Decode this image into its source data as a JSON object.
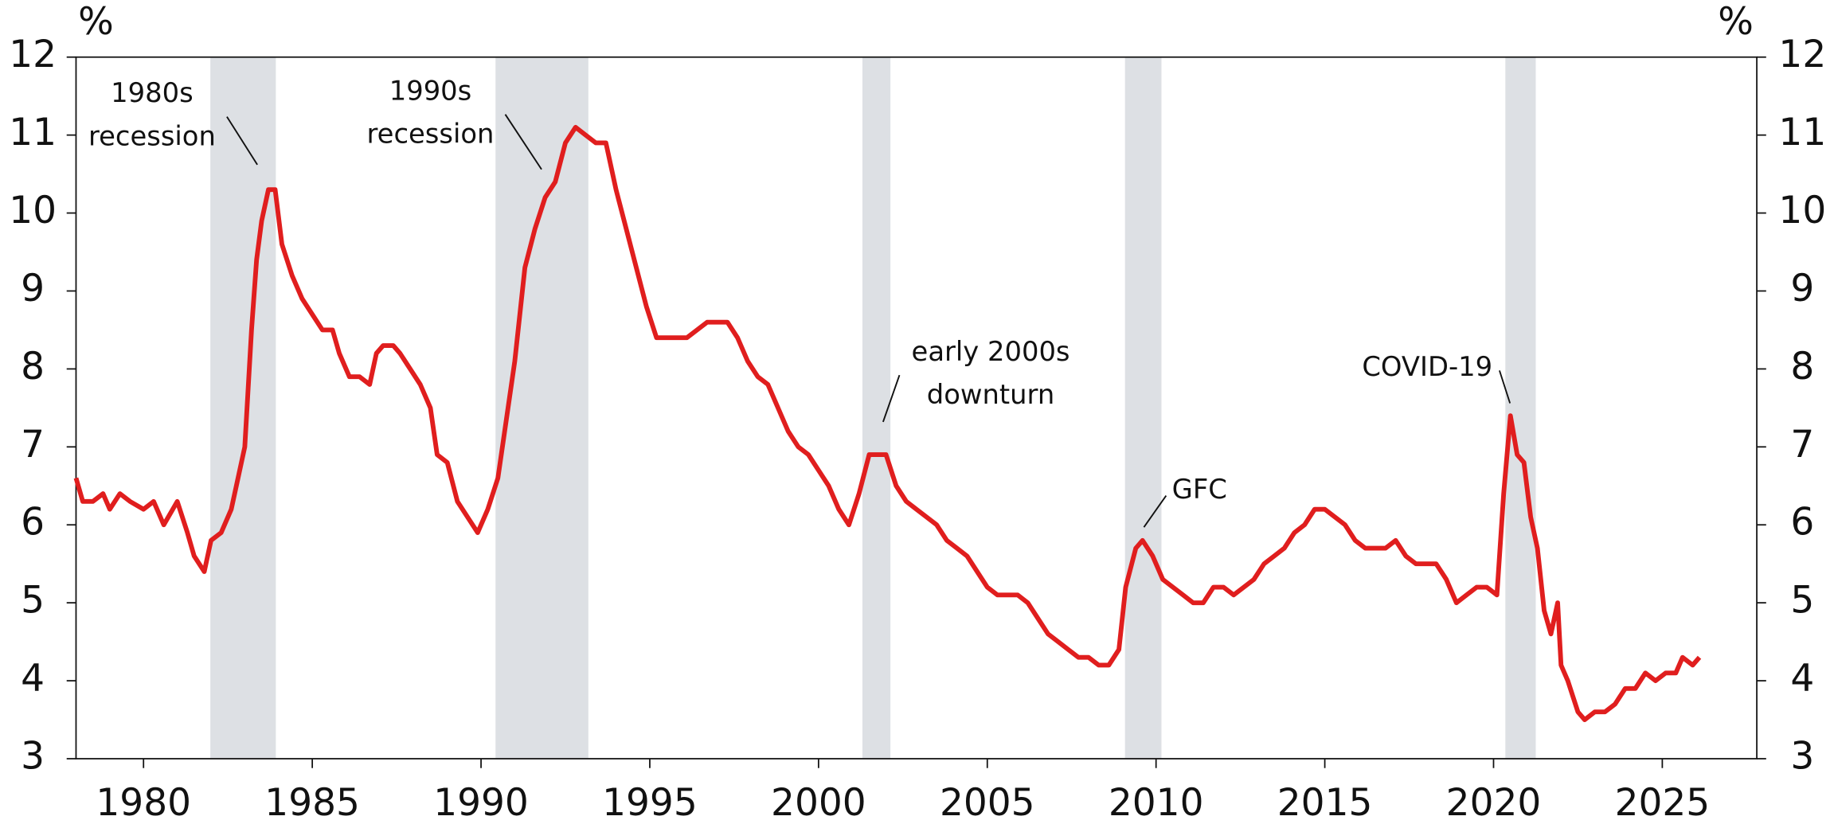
{
  "chart_data": {
    "type": "line",
    "ylabel": "%",
    "y2label": "%",
    "xlim": [
      1978,
      2027.8
    ],
    "xticks": [
      1980,
      1985,
      1990,
      1995,
      2000,
      2005,
      2010,
      2015,
      2020,
      2025
    ],
    "ylim": [
      3,
      12
    ],
    "yticks": [
      3,
      4,
      5,
      6,
      7,
      8,
      9,
      10,
      11,
      12
    ],
    "y2lim": [
      3,
      12
    ],
    "y2ticks": [
      3,
      4,
      5,
      6,
      7,
      8,
      9,
      10,
      11,
      12
    ],
    "shaded_ranges": [
      [
        1981.98,
        1983.92
      ],
      [
        1990.43,
        1993.18
      ],
      [
        2001.3,
        2002.13
      ],
      [
        2009.08,
        2010.16
      ],
      [
        2020.35,
        2021.25
      ]
    ],
    "shade_color": "#dde0e4",
    "annotations": [
      {
        "lines": [
          "1980s",
          "recession"
        ]
      },
      {
        "lines": [
          "1990s",
          "recession"
        ]
      },
      {
        "lines": [
          "early 2000s",
          "downturn"
        ]
      },
      {
        "lines": [
          "GFC"
        ]
      },
      {
        "lines": [
          "COVID-19"
        ]
      }
    ],
    "series": [
      {
        "color": "#e01e1e",
        "x": [
          1978.0,
          1978.2,
          1978.5,
          1978.8,
          1979.0,
          1979.3,
          1979.6,
          1980.0,
          1980.3,
          1980.6,
          1981.0,
          1981.3,
          1981.5,
          1981.8,
          1982.0,
          1982.3,
          1982.6,
          1982.8,
          1983.0,
          1983.2,
          1983.35,
          1983.5,
          1983.7,
          1983.9,
          1984.1,
          1984.4,
          1984.7,
          1985.0,
          1985.3,
          1985.6,
          1985.8,
          1986.1,
          1986.4,
          1986.7,
          1986.9,
          1987.1,
          1987.4,
          1987.6,
          1987.9,
          1988.2,
          1988.5,
          1988.7,
          1989.0,
          1989.3,
          1989.6,
          1989.9,
          1990.2,
          1990.5,
          1990.8,
          1991.0,
          1991.3,
          1991.6,
          1991.9,
          1992.2,
          1992.5,
          1992.8,
          1993.1,
          1993.4,
          1993.7,
          1994.0,
          1994.3,
          1994.6,
          1994.9,
          1995.2,
          1995.5,
          1995.8,
          1996.1,
          1996.4,
          1996.7,
          1997.0,
          1997.3,
          1997.6,
          1997.9,
          1998.2,
          1998.5,
          1998.8,
          1999.1,
          1999.4,
          1999.7,
          2000.0,
          2000.3,
          2000.6,
          2000.9,
          2001.2,
          2001.5,
          2001.8,
          2002.0,
          2002.3,
          2002.6,
          2002.9,
          2003.2,
          2003.5,
          2003.8,
          2004.1,
          2004.4,
          2004.7,
          2005.0,
          2005.3,
          2005.6,
          2005.9,
          2006.2,
          2006.5,
          2006.8,
          2007.1,
          2007.4,
          2007.7,
          2008.0,
          2008.3,
          2008.6,
          2008.9,
          2009.1,
          2009.4,
          2009.6,
          2009.9,
          2010.2,
          2010.5,
          2010.8,
          2011.1,
          2011.4,
          2011.7,
          2012.0,
          2012.3,
          2012.6,
          2012.9,
          2013.2,
          2013.5,
          2013.8,
          2014.1,
          2014.4,
          2014.7,
          2015.0,
          2015.3,
          2015.6,
          2015.9,
          2016.2,
          2016.5,
          2016.8,
          2017.1,
          2017.4,
          2017.7,
          2018.0,
          2018.3,
          2018.6,
          2018.9,
          2019.2,
          2019.5,
          2019.8,
          2020.1,
          2020.3,
          2020.5,
          2020.7,
          2020.9,
          2021.1,
          2021.3,
          2021.5,
          2021.7,
          2021.9,
          2022.0,
          2022.2,
          2022.5,
          2022.7,
          2023.0,
          2023.3,
          2023.6,
          2023.9,
          2024.2,
          2024.5,
          2024.8,
          2025.1,
          2025.4,
          2025.6,
          2025.9,
          2026.1
        ],
        "values": [
          6.6,
          6.3,
          6.3,
          6.4,
          6.2,
          6.4,
          6.3,
          6.2,
          6.3,
          6.0,
          6.3,
          5.9,
          5.6,
          5.4,
          5.8,
          5.9,
          6.2,
          6.6,
          7.0,
          8.5,
          9.4,
          9.9,
          10.3,
          10.3,
          9.6,
          9.2,
          8.9,
          8.7,
          8.5,
          8.5,
          8.2,
          7.9,
          7.9,
          7.8,
          8.2,
          8.3,
          8.3,
          8.2,
          8.0,
          7.8,
          7.5,
          6.9,
          6.8,
          6.3,
          6.1,
          5.9,
          6.2,
          6.6,
          7.5,
          8.1,
          9.3,
          9.8,
          10.2,
          10.4,
          10.9,
          11.1,
          11.0,
          10.9,
          10.9,
          10.3,
          9.8,
          9.3,
          8.8,
          8.4,
          8.4,
          8.4,
          8.4,
          8.5,
          8.6,
          8.6,
          8.6,
          8.4,
          8.1,
          7.9,
          7.8,
          7.5,
          7.2,
          7.0,
          6.9,
          6.7,
          6.5,
          6.2,
          6.0,
          6.4,
          6.9,
          6.9,
          6.9,
          6.5,
          6.3,
          6.2,
          6.1,
          6.0,
          5.8,
          5.7,
          5.6,
          5.4,
          5.2,
          5.1,
          5.1,
          5.1,
          5.0,
          4.8,
          4.6,
          4.5,
          4.4,
          4.3,
          4.3,
          4.2,
          4.2,
          4.4,
          5.2,
          5.7,
          5.8,
          5.6,
          5.3,
          5.2,
          5.1,
          5.0,
          5.0,
          5.2,
          5.2,
          5.1,
          5.2,
          5.3,
          5.5,
          5.6,
          5.7,
          5.9,
          6.0,
          6.2,
          6.2,
          6.1,
          6.0,
          5.8,
          5.7,
          5.7,
          5.7,
          5.8,
          5.6,
          5.5,
          5.5,
          5.5,
          5.3,
          5.0,
          5.1,
          5.2,
          5.2,
          5.1,
          6.4,
          7.4,
          6.9,
          6.8,
          6.1,
          5.7,
          4.9,
          4.6,
          5.0,
          4.2,
          4.0,
          3.6,
          3.5,
          3.6,
          3.6,
          3.7,
          3.9,
          3.9,
          4.1,
          4.0,
          4.1,
          4.1,
          4.3,
          4.2,
          4.3
        ]
      }
    ]
  }
}
